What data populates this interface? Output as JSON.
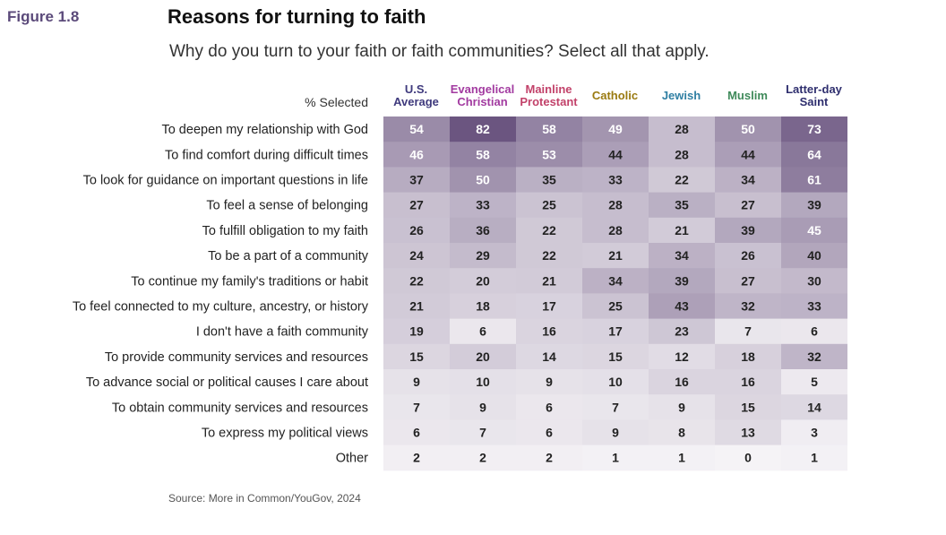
{
  "figure_label": "Figure 1.8",
  "source": "Source: More in Common/YouGov, 2024",
  "colors": {
    "figure_label": "#5b4a7a",
    "col_headers": [
      "#3f3a7d",
      "#a23aa0",
      "#c2426a",
      "#9a7a10",
      "#2f7fa3",
      "#3f8a5a",
      "#2e2e6e"
    ],
    "cell_scale_light": "#f5f3f6",
    "cell_scale_dark": "#6b5580"
  },
  "chart_data": {
    "type": "heatmap",
    "title": "Reasons for turning to faith",
    "subtitle": "Why do you turn to your faith or faith communities? Select all that apply.",
    "row_header_label": "% Selected",
    "columns": [
      [
        "U.S.",
        "Average"
      ],
      [
        "Evangelical",
        "Christian"
      ],
      [
        "Mainline",
        "Protestant"
      ],
      [
        "Catholic"
      ],
      [
        "Jewish"
      ],
      [
        "Muslim"
      ],
      [
        "Latter-day",
        "Saint"
      ]
    ],
    "rows": [
      "To deepen my relationship with God",
      "To find comfort during difficult times",
      "To look for guidance on important questions in life",
      "To feel a sense of belonging",
      "To fulfill obligation to my faith",
      "To be a part of a community",
      "To continue my family's traditions or habit",
      "To feel connected to my culture, ancestry, or history",
      "I don't have a faith community",
      "To provide community services and resources",
      "To advance social or political causes I care about",
      "To obtain community services and resources",
      "To express my political views",
      "Other"
    ],
    "values": [
      [
        54,
        82,
        58,
        49,
        28,
        50,
        73
      ],
      [
        46,
        58,
        53,
        44,
        28,
        44,
        64
      ],
      [
        37,
        50,
        35,
        33,
        22,
        34,
        61
      ],
      [
        27,
        33,
        25,
        28,
        35,
        27,
        39
      ],
      [
        26,
        36,
        22,
        28,
        21,
        39,
        45
      ],
      [
        24,
        29,
        22,
        21,
        34,
        26,
        40
      ],
      [
        22,
        20,
        21,
        34,
        39,
        27,
        30
      ],
      [
        21,
        18,
        17,
        25,
        43,
        32,
        33
      ],
      [
        19,
        6,
        16,
        17,
        23,
        7,
        6
      ],
      [
        15,
        20,
        14,
        15,
        12,
        18,
        32
      ],
      [
        9,
        10,
        9,
        10,
        16,
        16,
        5
      ],
      [
        7,
        9,
        6,
        7,
        9,
        15,
        14
      ],
      [
        6,
        7,
        6,
        9,
        8,
        13,
        3
      ],
      [
        2,
        2,
        2,
        1,
        1,
        0,
        1
      ]
    ],
    "value_range": [
      0,
      82
    ]
  }
}
